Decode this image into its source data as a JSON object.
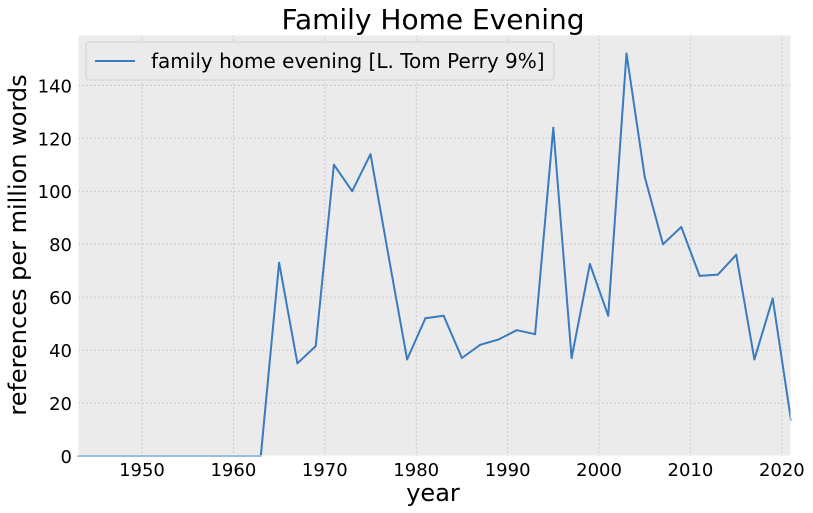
{
  "chart_data": {
    "type": "line",
    "title": "Family Home Evening",
    "xlabel": "year",
    "ylabel": "references per million words",
    "xlim": [
      1943,
      2021
    ],
    "ylim": [
      0,
      159
    ],
    "xticks": [
      1950,
      1960,
      1970,
      1980,
      1990,
      2000,
      2010,
      2020
    ],
    "yticks": [
      0,
      20,
      40,
      60,
      80,
      100,
      120,
      140
    ],
    "grid": true,
    "legend_position": "top-left",
    "series": [
      {
        "name": "family home evening [L. Tom Perry 9%]",
        "color": "#3a7bbf",
        "x": [
          1943,
          1945,
          1947,
          1949,
          1951,
          1953,
          1955,
          1957,
          1959,
          1961,
          1963,
          1965,
          1967,
          1969,
          1971,
          1973,
          1975,
          1977,
          1979,
          1981,
          1983,
          1985,
          1987,
          1989,
          1991,
          1993,
          1995,
          1997,
          1999,
          2001,
          2003,
          2005,
          2007,
          2009,
          2011,
          2013,
          2015,
          2017,
          2019,
          2021
        ],
        "y": [
          0,
          0,
          0,
          0,
          0,
          0,
          0,
          0,
          0,
          0,
          0,
          73,
          35,
          41.5,
          110,
          100,
          114,
          75,
          36.5,
          52,
          53,
          37,
          42,
          44,
          47.5,
          46,
          124,
          37,
          72.5,
          53,
          152,
          105.5,
          80,
          86.5,
          68,
          68.5,
          76,
          36.5,
          59.5,
          13.5
        ]
      }
    ]
  }
}
